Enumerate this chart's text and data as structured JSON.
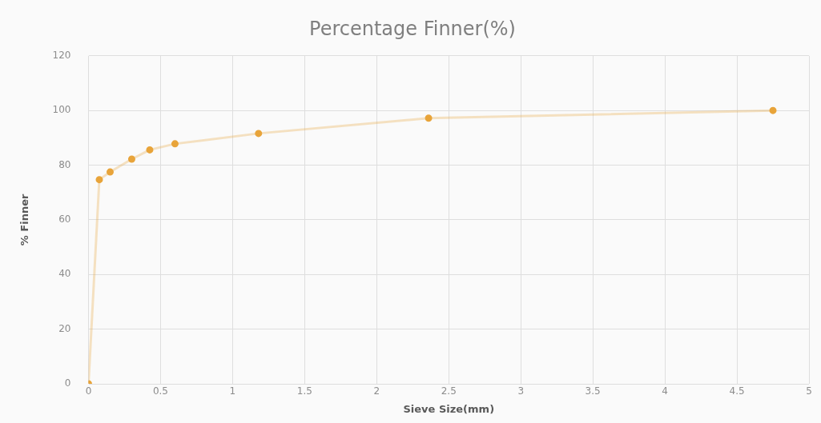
{
  "chart_data": {
    "type": "line",
    "title": "Percentage Finner(%)",
    "xlabel": "Sieve Size(mm)",
    "ylabel": "% Finner",
    "x": [
      0,
      0.075,
      0.15,
      0.3,
      0.425,
      0.6,
      1.18,
      2.36,
      4.75
    ],
    "series": [
      {
        "color": "#e8a43a",
        "values": [
          0,
          74.7,
          77.5,
          82.2,
          85.6,
          87.8,
          91.6,
          97.2,
          100
        ]
      }
    ],
    "xlim": [
      0,
      5
    ],
    "xticks": [
      0,
      0.5,
      1,
      1.5,
      2,
      2.5,
      3,
      3.5,
      4,
      4.5,
      5
    ],
    "ylim": [
      0,
      120
    ],
    "yticks": [
      0,
      20,
      40,
      60,
      80,
      100,
      120
    ],
    "grid": true,
    "legend": false,
    "marker": "circle",
    "line_style": "solid"
  }
}
